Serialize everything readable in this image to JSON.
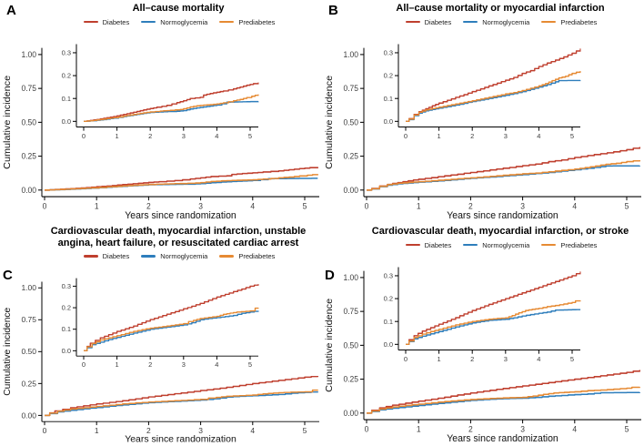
{
  "legend": {
    "items": [
      {
        "label": "Diabetes",
        "color": "#BF3F2E"
      },
      {
        "label": "Normoglycemia",
        "color": "#2E7EBC"
      },
      {
        "label": "Prediabetes",
        "color": "#E68A33"
      }
    ]
  },
  "axes": {
    "main": {
      "ylabel": "Cumulative incidence",
      "xlabel": "Years since randomization",
      "yticks": [
        0,
        0.25,
        0.5,
        0.75,
        1.0
      ],
      "ytick_labels": [
        "0.00",
        "0.25",
        "0.50",
        "0.75",
        "1.00"
      ],
      "xticks": [
        0,
        1,
        2,
        3,
        4,
        5
      ],
      "xtick_labels": [
        "0",
        "1",
        "2",
        "3",
        "4",
        "5"
      ],
      "ylim": [
        0,
        1.0
      ],
      "xlim": [
        0,
        5.3
      ],
      "grid": false
    },
    "inset": {
      "yticks": [
        0,
        0.1,
        0.2,
        0.3
      ],
      "ytick_labels": [
        "0.0",
        "0.1",
        "0.2",
        "0.3"
      ],
      "xticks": [
        0,
        1,
        2,
        3,
        4,
        5
      ],
      "xtick_labels": [
        "0",
        "1",
        "2",
        "3",
        "4",
        "5"
      ],
      "ylim": [
        0,
        0.3
      ],
      "xlim": [
        0,
        5.3
      ]
    }
  },
  "chart_data": [
    {
      "panel": "A",
      "title": "All–cause mortality",
      "type": "line",
      "series": [
        {
          "name": "Diabetes",
          "color": "#BF3F2E",
          "x": [
            0,
            0.2,
            0.4,
            0.6,
            0.8,
            1,
            1.2,
            1.5,
            1.8,
            2,
            2.2,
            2.5,
            2.8,
            3,
            3.2,
            3.5,
            3.6,
            3.8,
            4,
            4.2,
            4.5,
            4.7,
            4.9,
            5.1,
            5.25
          ],
          "y": [
            0,
            0.004,
            0.008,
            0.013,
            0.018,
            0.024,
            0.03,
            0.04,
            0.05,
            0.056,
            0.062,
            0.07,
            0.082,
            0.09,
            0.1,
            0.105,
            0.115,
            0.122,
            0.127,
            0.133,
            0.142,
            0.15,
            0.158,
            0.165,
            0.17
          ]
        },
        {
          "name": "Normoglycemia",
          "color": "#2E7EBC",
          "x": [
            0,
            0.3,
            0.6,
            0.9,
            1.2,
            1.5,
            1.8,
            2,
            2.4,
            2.8,
            3,
            3.2,
            3.4,
            3.6,
            3.8,
            4,
            4.15,
            4.3,
            5.25
          ],
          "y": [
            0,
            0.003,
            0.008,
            0.014,
            0.021,
            0.028,
            0.035,
            0.039,
            0.042,
            0.044,
            0.047,
            0.054,
            0.059,
            0.063,
            0.067,
            0.071,
            0.077,
            0.084,
            0.087
          ]
        },
        {
          "name": "Prediabetes",
          "color": "#E68A33",
          "x": [
            0,
            0.3,
            0.6,
            0.9,
            1.2,
            1.5,
            1.8,
            2,
            2.3,
            2.6,
            2.9,
            3,
            3.2,
            3.4,
            3.6,
            3.8,
            4,
            4.2,
            4.5,
            4.7,
            4.9,
            5.05,
            5.25
          ],
          "y": [
            0,
            0.004,
            0.01,
            0.016,
            0.023,
            0.03,
            0.037,
            0.041,
            0.045,
            0.048,
            0.052,
            0.055,
            0.063,
            0.068,
            0.071,
            0.073,
            0.076,
            0.081,
            0.09,
            0.096,
            0.104,
            0.11,
            0.118
          ]
        }
      ]
    },
    {
      "panel": "B",
      "title": "All–cause mortality or myocardial infarction",
      "type": "line",
      "series": [
        {
          "name": "Diabetes",
          "color": "#BF3F2E",
          "x": [
            0,
            0.1,
            0.25,
            0.4,
            0.6,
            0.8,
            1,
            1.25,
            1.5,
            1.75,
            2,
            2.25,
            2.5,
            2.75,
            3,
            3.25,
            3.5,
            3.75,
            4,
            4.25,
            4.5,
            4.75,
            5,
            5.25
          ],
          "y": [
            0,
            0.012,
            0.03,
            0.042,
            0.055,
            0.068,
            0.08,
            0.092,
            0.105,
            0.117,
            0.13,
            0.142,
            0.155,
            0.167,
            0.18,
            0.192,
            0.21,
            0.222,
            0.24,
            0.255,
            0.268,
            0.282,
            0.298,
            0.318
          ]
        },
        {
          "name": "Normoglycemia",
          "color": "#2E7EBC",
          "x": [
            0,
            0.1,
            0.25,
            0.4,
            0.6,
            0.8,
            1,
            1.5,
            2,
            2.5,
            3,
            3.5,
            3.75,
            4,
            4.25,
            4.5,
            4.6,
            5.25
          ],
          "y": [
            0,
            0.008,
            0.025,
            0.036,
            0.046,
            0.052,
            0.058,
            0.071,
            0.087,
            0.1,
            0.114,
            0.13,
            0.14,
            0.15,
            0.161,
            0.173,
            0.178,
            0.179
          ]
        },
        {
          "name": "Prediabetes",
          "color": "#E68A33",
          "x": [
            0,
            0.1,
            0.25,
            0.4,
            0.6,
            0.8,
            1,
            1.5,
            2,
            2.5,
            3,
            3.25,
            3.5,
            3.75,
            4,
            4.2,
            4.4,
            4.6,
            4.8,
            5,
            5.25
          ],
          "y": [
            0,
            0.01,
            0.028,
            0.04,
            0.05,
            0.056,
            0.062,
            0.076,
            0.09,
            0.105,
            0.12,
            0.126,
            0.135,
            0.145,
            0.155,
            0.165,
            0.178,
            0.19,
            0.197,
            0.21,
            0.22
          ]
        }
      ]
    },
    {
      "panel": "C",
      "title": "Cardiovascular death, myocardial infarction, unstable angina, heart failure, or resuscitated cardiac arrest",
      "type": "line",
      "series": [
        {
          "name": "Diabetes",
          "color": "#BF3F2E",
          "x": [
            0,
            0.1,
            0.2,
            0.35,
            0.5,
            0.75,
            1,
            1.25,
            1.5,
            1.75,
            2,
            2.25,
            2.5,
            2.75,
            3,
            3.25,
            3.5,
            3.75,
            4,
            4.25,
            4.5,
            4.75,
            5,
            5.25
          ],
          "y": [
            0,
            0.02,
            0.035,
            0.048,
            0.06,
            0.075,
            0.09,
            0.102,
            0.115,
            0.13,
            0.145,
            0.157,
            0.17,
            0.182,
            0.195,
            0.207,
            0.22,
            0.235,
            0.25,
            0.262,
            0.275,
            0.287,
            0.3,
            0.31
          ]
        },
        {
          "name": "Normoglycemia",
          "color": "#2E7EBC",
          "x": [
            0,
            0.1,
            0.25,
            0.5,
            0.75,
            1,
            1.5,
            2,
            2.5,
            2.75,
            3,
            3.25,
            3.5,
            3.75,
            4,
            4.25,
            4.5,
            4.75,
            5,
            5.25
          ],
          "y": [
            0,
            0.014,
            0.028,
            0.04,
            0.052,
            0.062,
            0.082,
            0.1,
            0.11,
            0.115,
            0.12,
            0.13,
            0.144,
            0.15,
            0.154,
            0.159,
            0.164,
            0.174,
            0.18,
            0.186
          ]
        },
        {
          "name": "Prediabetes",
          "color": "#E68A33",
          "x": [
            0,
            0.1,
            0.25,
            0.5,
            0.75,
            1,
            1.25,
            1.5,
            1.75,
            2,
            2.25,
            2.5,
            2.75,
            3,
            3.15,
            3.3,
            3.5,
            3.75,
            4,
            4.2,
            4.4,
            4.6,
            5,
            5.15,
            5.25
          ],
          "y": [
            0,
            0.018,
            0.033,
            0.05,
            0.06,
            0.07,
            0.08,
            0.09,
            0.098,
            0.105,
            0.11,
            0.115,
            0.12,
            0.126,
            0.136,
            0.141,
            0.15,
            0.155,
            0.16,
            0.169,
            0.175,
            0.18,
            0.185,
            0.198,
            0.2
          ]
        }
      ]
    },
    {
      "panel": "D",
      "title": "Cardiovascular death, myocardial infarction, or stroke",
      "type": "line",
      "series": [
        {
          "name": "Diabetes",
          "color": "#BF3F2E",
          "x": [
            0,
            0.1,
            0.25,
            0.5,
            0.75,
            1,
            1.25,
            1.5,
            1.75,
            2,
            2.5,
            3,
            3.5,
            4,
            4.5,
            5,
            5.25
          ],
          "y": [
            0,
            0.02,
            0.038,
            0.058,
            0.073,
            0.088,
            0.102,
            0.117,
            0.133,
            0.148,
            0.175,
            0.2,
            0.225,
            0.25,
            0.275,
            0.3,
            0.318
          ]
        },
        {
          "name": "Normoglycemia",
          "color": "#2E7EBC",
          "x": [
            0,
            0.1,
            0.25,
            0.5,
            0.75,
            1,
            1.5,
            2,
            2.5,
            3,
            3.25,
            3.5,
            3.75,
            4,
            4.25,
            4.5,
            5.25
          ],
          "y": [
            0,
            0.012,
            0.024,
            0.036,
            0.046,
            0.056,
            0.076,
            0.094,
            0.105,
            0.11,
            0.116,
            0.124,
            0.13,
            0.136,
            0.141,
            0.15,
            0.152
          ]
        },
        {
          "name": "Prediabetes",
          "color": "#E68A33",
          "x": [
            0,
            0.1,
            0.25,
            0.5,
            0.75,
            1,
            1.5,
            2,
            2.5,
            3,
            3.2,
            3.4,
            3.6,
            3.8,
            4,
            4.25,
            4.5,
            5,
            5.1,
            5.25
          ],
          "y": [
            0,
            0.015,
            0.03,
            0.045,
            0.056,
            0.066,
            0.085,
            0.1,
            0.11,
            0.116,
            0.126,
            0.138,
            0.148,
            0.153,
            0.157,
            0.165,
            0.17,
            0.183,
            0.19,
            0.192
          ]
        }
      ]
    }
  ]
}
